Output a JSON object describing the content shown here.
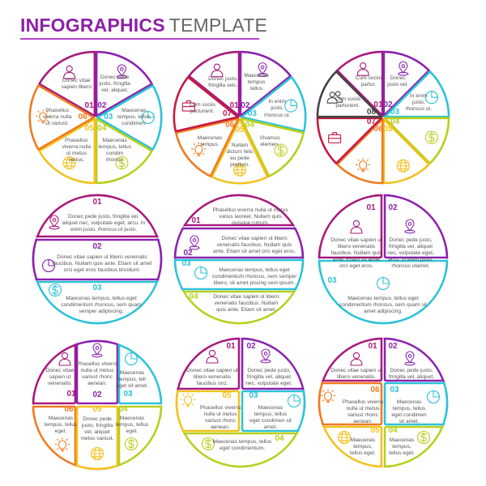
{
  "title": {
    "bold": "INFOGRAPHICS",
    "light": "TEMPLATE"
  },
  "colors": {
    "01": "#a8197e",
    "02": "#8c22ae",
    "03": "#2cc3d8",
    "04": "#b9cf1c",
    "05": "#f3c11c",
    "06": "#f07b1f",
    "07": "#c51a42",
    "08": "#444444"
  },
  "diagrams": [
    {
      "type": "pie",
      "items": [
        {
          "num": "01",
          "icon": "person-icon",
          "text": "Donec vitae sapien libero"
        },
        {
          "num": "02",
          "icon": "location-pin-icon",
          "text": "Donec pede justo, fringilla vel, aliquet."
        },
        {
          "num": "03",
          "icon": "pie-chart-icon",
          "text": "Maecenas tempus, tellus condimen."
        },
        {
          "num": "04",
          "icon": "dollar-icon",
          "text": "Maecenas tempus, tellus condim rhoncu."
        },
        {
          "num": "05",
          "icon": "globe-icon",
          "text": "Phasellus viverra nulla ut metus varius."
        },
        {
          "num": "06",
          "icon": "light-bulb-icon",
          "text": "Phasellus viverra nulla ut variust."
        }
      ]
    },
    {
      "type": "pie",
      "items": [
        {
          "num": "01",
          "icon": "person-icon",
          "text": "Donec justo, fringilla velc."
        },
        {
          "num": "02",
          "icon": "location-pin-icon",
          "text": "Maecenas tempus tellus"
        },
        {
          "num": "03",
          "icon": "pie-chart-icon",
          "text": "In enim justo, rhoncus ut."
        },
        {
          "num": "04",
          "icon": "dollar-icon",
          "text": "Vivamus elemen."
        },
        {
          "num": "05",
          "icon": "globe-icon",
          "text": "Nullam dictum felis eu pede pretium."
        },
        {
          "num": "06",
          "icon": "light-bulb-icon",
          "text": "Maecenas tempus."
        },
        {
          "num": "07",
          "icon": "briefcase-icon",
          "text": "Cum sociis parturient."
        }
      ]
    },
    {
      "type": "pie",
      "items": [
        {
          "num": "01",
          "icon": "person-icon",
          "text": "Cum sociis partur."
        },
        {
          "num": "02",
          "icon": "location-pin-icon",
          "text": "Donec justo vel."
        },
        {
          "num": "03",
          "icon": "pie-chart-icon",
          "text": "In enim justo, rhoncus ut."
        },
        {
          "num": "04",
          "icon": "dollar-icon",
          "text": ""
        },
        {
          "num": "05",
          "icon": "globe-icon",
          "text": ""
        },
        {
          "num": "06",
          "icon": "light-bulb-icon",
          "text": ""
        },
        {
          "num": "07",
          "icon": "briefcase-icon",
          "text": ""
        },
        {
          "num": "08",
          "icon": "people-icon",
          "text": "Cum sociis parturient."
        }
      ]
    },
    {
      "type": "bands",
      "items": [
        {
          "num": "01",
          "icon": "location-pin-icon",
          "text": "Donec pede justo, fringilla vel, aliquet nec, vulputate eget, arcu. In enim justo, rhoncus ut justo."
        },
        {
          "num": "02",
          "icon": "pie-chart-icon",
          "text": "Donec vitae sapien ut libero venenatis faucibus. Nullam quis ante. Etiam sit amet orci eget eros faucibus tincidunt."
        },
        {
          "num": "03",
          "icon": "dollar-icon",
          "text": "Maecenas tempus, tellus eget condimentum rhoncus, sem quam semper adipiscing."
        }
      ]
    },
    {
      "type": "bands",
      "items": [
        {
          "num": "01",
          "icon": "",
          "text": "Phasellus viverra nulla ut metus varius laoreet. Nullam quis quisque rutrum."
        },
        {
          "num": "02",
          "icon": "location-pin-icon",
          "text": "Donec vitae sapien ut libero venenatis faucibus. Nullam quis ante. Etiam sit amet orci eget eros."
        },
        {
          "num": "03",
          "icon": "pie-chart-icon",
          "text": "Maecenas tempus, tellus eget condimentum rhoncus, sem semper libero, sit amet piscing sem ipsum."
        },
        {
          "num": "04",
          "icon": "",
          "text": "Donec vitae sapien ut libero venenatis faucibus. Nullam quis ante. Etiam sit amet."
        }
      ]
    },
    {
      "type": "grid",
      "items": [
        {
          "num": "01",
          "icon": "person-icon",
          "text": "Donec vitae sapien ut libero venenatis faucibus. Nullam quis ante. Etiam sit amet orci eget eros."
        },
        {
          "num": "02",
          "icon": "location-pin-icon",
          "text": "Donec pede justo, fringilla vel, aliquet nec, vulputate eget, arcu. In enim justo, rhoncus utamet."
        },
        {
          "num": "03",
          "icon": "pie-chart-icon",
          "text": "Maecenas tempus, tellus eget condimentum rhoncus, sem quam sit amet adipiscing."
        }
      ]
    },
    {
      "type": "grid",
      "items": [
        {
          "num": "01",
          "icon": "person-icon",
          "text": "Donec vitae sapien ut venenatis."
        },
        {
          "num": "02",
          "icon": "location-pin-icon",
          "text": "Phasellus viverra nulla ut metus variust rhonc aenean."
        },
        {
          "num": "03",
          "icon": "pie-chart-icon",
          "text": "Maecenas tempus, tell eget sit amet."
        },
        {
          "num": "06",
          "icon": "light-bulb-icon",
          "text": "Maecenas tempus, tellus eget."
        },
        {
          "num": "05",
          "icon": "globe-icon",
          "text": "Donec pede justo, fringilla vel, aliquet metus variust."
        },
        {
          "num": "04",
          "icon": "dollar-icon",
          "text": "Maecenas tempus, tellus eget."
        }
      ]
    },
    {
      "type": "grid",
      "items": [
        {
          "num": "01",
          "icon": "person-icon",
          "text": "Donec vitae sapien ut libero venenatis faucibus orci."
        },
        {
          "num": "02",
          "icon": "location-pin-icon",
          "text": "Donec pede justo, fringilla vel, aliquet nec, vulputate eget."
        },
        {
          "num": "05",
          "icon": "light-bulb-icon",
          "text": "Phasellus viverra nulla ut metus variust rhonc aenean."
        },
        {
          "num": "03",
          "icon": "pie-chart-icon",
          "text": "Maecenas tempus, tellus eget condimen sit amet."
        },
        {
          "num": "04",
          "icon": "dollar-icon",
          "text": "Maecenas tempus, tellus eget condimentum."
        }
      ]
    },
    {
      "type": "grid",
      "items": [
        {
          "num": "01",
          "icon": "person-icon",
          "text": "Donec vitae sapien ut libero venenatis."
        },
        {
          "num": "02",
          "icon": "location-pin-icon",
          "text": "Donec pede justo, fringilla vel, aliquet."
        },
        {
          "num": "06",
          "icon": "light-bulb-icon",
          "text": "Phasellus viverra nulla ut metus variust rhonc aenean."
        },
        {
          "num": "03",
          "icon": "pie-chart-icon",
          "text": "Maecenas tempus, tellus eget condimen sit amet."
        },
        {
          "num": "05",
          "icon": "globe-icon",
          "text": "Maecenas tempus, tellus eget."
        },
        {
          "num": "04",
          "icon": "dollar-icon",
          "text": "Maecenas tempus, tellus eget."
        }
      ]
    }
  ]
}
